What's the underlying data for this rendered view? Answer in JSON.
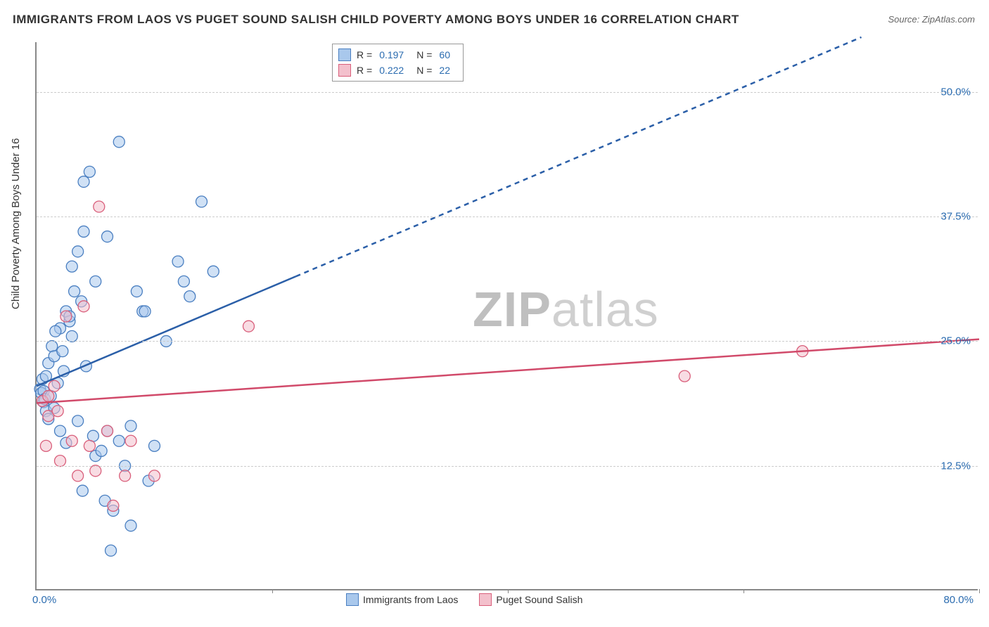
{
  "title": "IMMIGRANTS FROM LAOS VS PUGET SOUND SALISH CHILD POVERTY AMONG BOYS UNDER 16 CORRELATION CHART",
  "source": "Source: ZipAtlas.com",
  "y_axis_title": "Child Poverty Among Boys Under 16",
  "watermark_bold": "ZIP",
  "watermark_light": "atlas",
  "chart": {
    "type": "scatter",
    "xlim": [
      0,
      80
    ],
    "ylim": [
      0,
      55
    ],
    "x_ticks": [
      0,
      20,
      40,
      60,
      80
    ],
    "x_tick_labels": [
      "0.0%",
      "",
      "",
      "",
      "80.0%"
    ],
    "y_ticks": [
      12.5,
      25.0,
      37.5,
      50.0
    ],
    "y_tick_labels": [
      "12.5%",
      "25.0%",
      "37.5%",
      "50.0%"
    ],
    "background_color": "#ffffff",
    "grid_color": "#cccccc",
    "marker_radius": 8,
    "marker_stroke_width": 1.3,
    "series": [
      {
        "name": "Immigrants from Laos",
        "fill": "#a9c8ec",
        "stroke": "#4a7fc1",
        "fill_opacity": 0.55,
        "R": "0.197",
        "N": "60",
        "trend": {
          "x1": 0,
          "y1": 20.5,
          "x2_solid": 22,
          "y2_solid": 31.5,
          "x2_dash": 70,
          "y2_dash": 55.5,
          "color": "#2b5fa8",
          "width": 2.5
        },
        "points": [
          [
            0.3,
            20.2
          ],
          [
            0.4,
            19.8
          ],
          [
            0.5,
            21.2
          ],
          [
            0.6,
            18.9
          ],
          [
            0.6,
            20.0
          ],
          [
            0.7,
            19.2
          ],
          [
            0.8,
            18.0
          ],
          [
            0.8,
            21.5
          ],
          [
            1.0,
            22.8
          ],
          [
            1.0,
            17.2
          ],
          [
            1.2,
            19.5
          ],
          [
            1.3,
            24.5
          ],
          [
            1.5,
            23.5
          ],
          [
            1.5,
            18.3
          ],
          [
            1.8,
            20.8
          ],
          [
            2.0,
            26.3
          ],
          [
            2.0,
            16.0
          ],
          [
            2.2,
            24.0
          ],
          [
            2.3,
            22.0
          ],
          [
            2.5,
            28.0
          ],
          [
            2.5,
            14.8
          ],
          [
            2.8,
            27.0
          ],
          [
            3.0,
            32.5
          ],
          [
            3.0,
            25.5
          ],
          [
            3.2,
            30.0
          ],
          [
            3.5,
            34.0
          ],
          [
            3.5,
            17.0
          ],
          [
            3.8,
            29.0
          ],
          [
            4.0,
            36.0
          ],
          [
            4.2,
            22.5
          ],
          [
            4.5,
            42.0
          ],
          [
            4.8,
            15.5
          ],
          [
            5.0,
            31.0
          ],
          [
            5.0,
            13.5
          ],
          [
            5.5,
            14.0
          ],
          [
            5.8,
            9.0
          ],
          [
            6.0,
            35.5
          ],
          [
            6.0,
            16.0
          ],
          [
            6.5,
            8.0
          ],
          [
            7.0,
            45.0
          ],
          [
            7.0,
            15.0
          ],
          [
            7.5,
            12.5
          ],
          [
            8.0,
            6.5
          ],
          [
            8.0,
            16.5
          ],
          [
            8.5,
            30.0
          ],
          [
            9.0,
            28.0
          ],
          [
            9.5,
            11.0
          ],
          [
            10.0,
            14.5
          ],
          [
            11.0,
            25.0
          ],
          [
            12.0,
            33.0
          ],
          [
            12.5,
            31.0
          ],
          [
            13.0,
            29.5
          ],
          [
            14.0,
            39.0
          ],
          [
            15.0,
            32.0
          ],
          [
            4.0,
            41.0
          ],
          [
            2.8,
            27.5
          ],
          [
            1.6,
            26.0
          ],
          [
            6.3,
            4.0
          ],
          [
            3.9,
            10.0
          ],
          [
            9.2,
            28.0
          ]
        ]
      },
      {
        "name": "Puget Sound Salish",
        "fill": "#f3c0cc",
        "stroke": "#d95f7b",
        "fill_opacity": 0.55,
        "R": "0.222",
        "N": "22",
        "trend": {
          "x1": 0,
          "y1": 18.8,
          "x2_solid": 80,
          "y2_solid": 25.2,
          "color": "#d14a6a",
          "width": 2.5
        },
        "points": [
          [
            0.5,
            19.0
          ],
          [
            0.8,
            14.5
          ],
          [
            1.0,
            17.5
          ],
          [
            1.0,
            19.5
          ],
          [
            1.5,
            20.5
          ],
          [
            1.8,
            18.0
          ],
          [
            2.0,
            13.0
          ],
          [
            2.5,
            27.5
          ],
          [
            3.0,
            15.0
          ],
          [
            3.5,
            11.5
          ],
          [
            4.0,
            28.5
          ],
          [
            4.5,
            14.5
          ],
          [
            5.0,
            12.0
          ],
          [
            5.3,
            38.5
          ],
          [
            6.0,
            16.0
          ],
          [
            6.5,
            8.5
          ],
          [
            7.5,
            11.5
          ],
          [
            8.0,
            15.0
          ],
          [
            10.0,
            11.5
          ],
          [
            18.0,
            26.5
          ],
          [
            55.0,
            21.5
          ],
          [
            65.0,
            24.0
          ]
        ]
      }
    ],
    "legend_top": {
      "r_label": "R  =",
      "n_label": "N  ="
    },
    "legend_bottom": [
      "Immigrants from Laos",
      "Puget Sound Salish"
    ]
  }
}
